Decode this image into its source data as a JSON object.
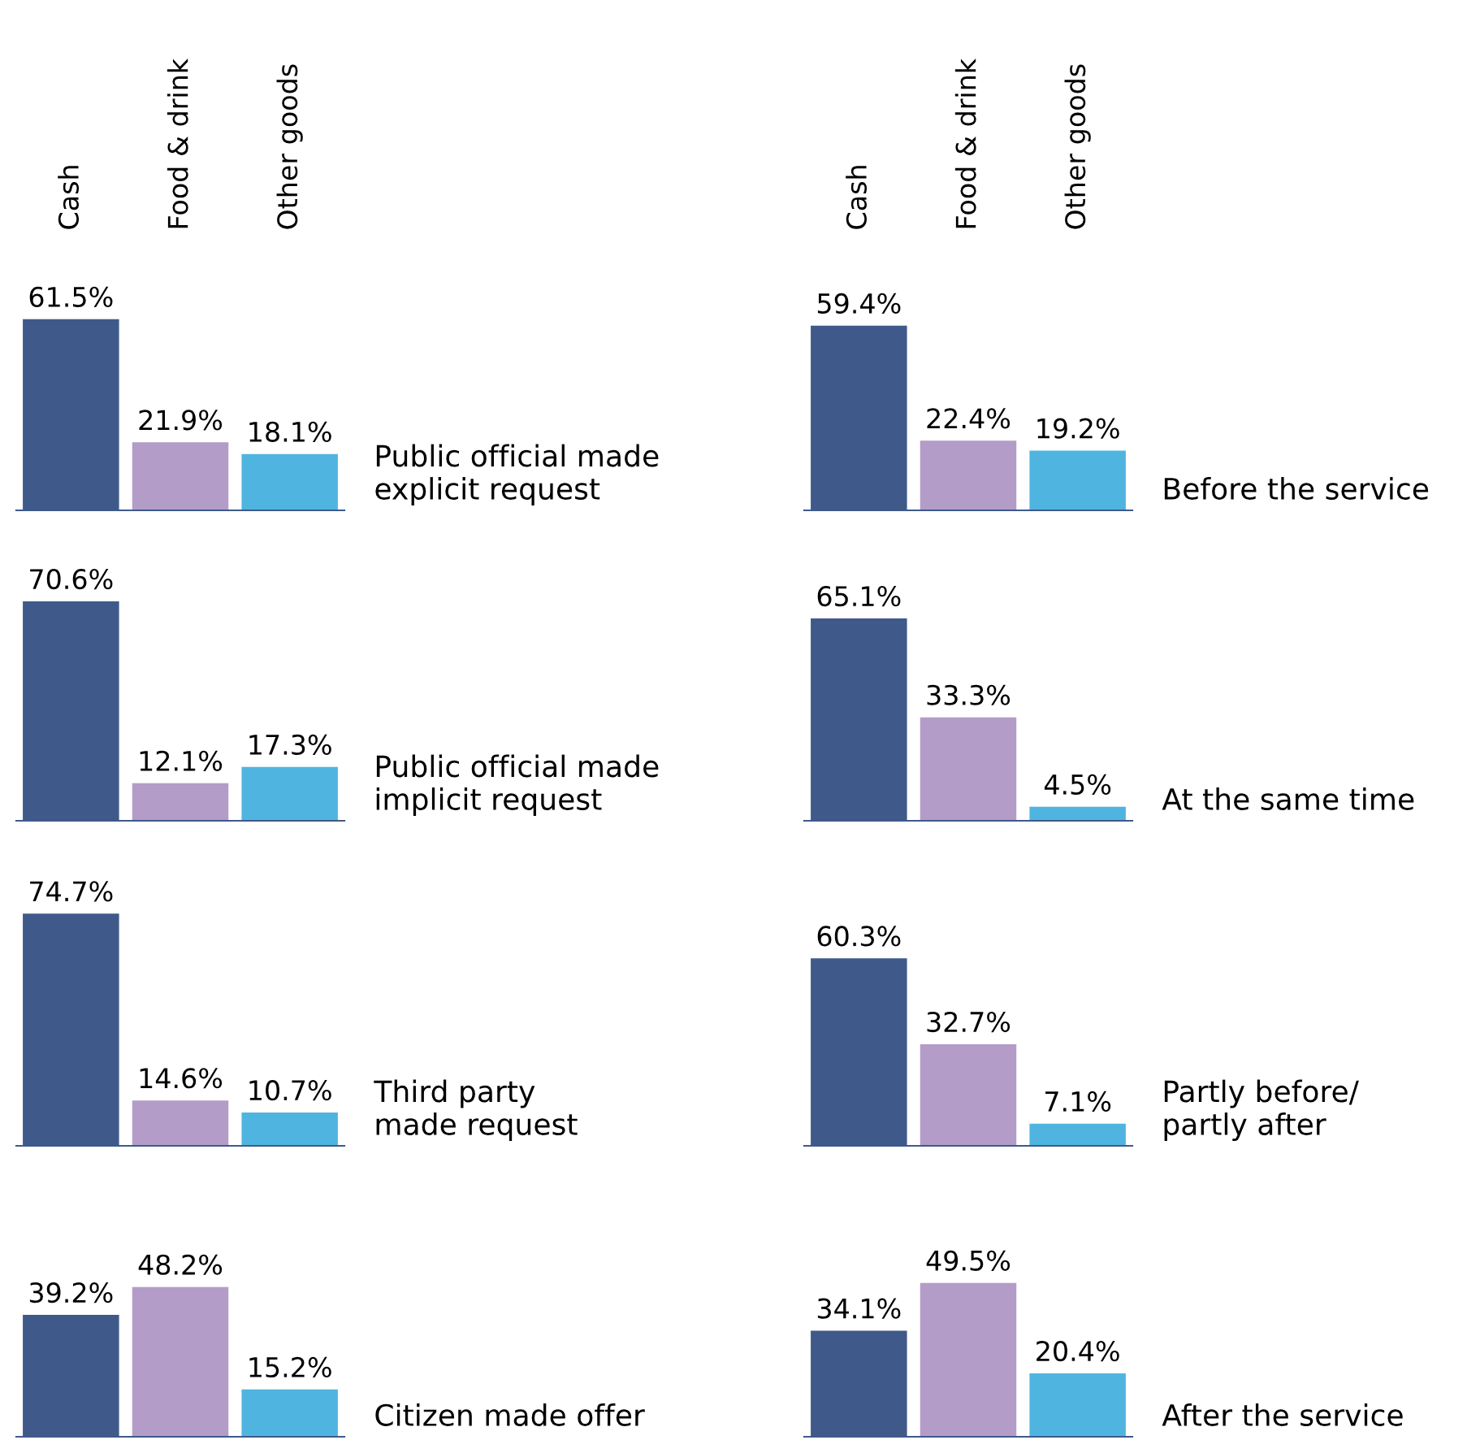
{
  "chart_data": [
    {
      "type": "bar",
      "categories": [
        "Cash",
        "Food & drink",
        "Other goods"
      ],
      "values": [
        61.5,
        21.9,
        18.1
      ],
      "value_labels": [
        "61.5%",
        "21.9%",
        "18.1%"
      ],
      "colors": [
        "#3f5a8a",
        "#b39cc8",
        "#4fb5e0"
      ],
      "annotations": [
        "Public official made\nexplicit request"
      ]
    },
    {
      "type": "bar",
      "categories": [
        "Cash",
        "Food & drink",
        "Other goods"
      ],
      "values": [
        59.4,
        22.4,
        19.2
      ],
      "value_labels": [
        "59.4%",
        "22.4%",
        "19.2%"
      ],
      "colors": [
        "#3f5a8a",
        "#b39cc8",
        "#4fb5e0"
      ],
      "annotations": [
        "Before the service"
      ]
    },
    {
      "type": "bar",
      "categories": [
        null,
        null,
        null
      ],
      "values": [
        70.6,
        12.1,
        17.3
      ],
      "value_labels": [
        "70.6%",
        "12.1%",
        "17.3%"
      ],
      "colors": [
        "#3f5a8a",
        "#b39cc8",
        "#4fb5e0"
      ],
      "annotations": [
        "Public official made\nimplicit request"
      ]
    },
    {
      "type": "bar",
      "categories": [
        null,
        null,
        null
      ],
      "values": [
        65.1,
        33.3,
        4.5
      ],
      "value_labels": [
        "65.1%",
        "33.3%",
        "4.5%"
      ],
      "colors": [
        "#3f5a8a",
        "#b39cc8",
        "#4fb5e0"
      ],
      "annotations": [
        "At the same time"
      ]
    },
    {
      "type": "bar",
      "categories": [
        null,
        null,
        null
      ],
      "values": [
        74.7,
        14.6,
        10.7
      ],
      "value_labels": [
        "74.7%",
        "14.6%",
        "10.7%"
      ],
      "colors": [
        "#3f5a8a",
        "#b39cc8",
        "#4fb5e0"
      ],
      "annotations": [
        "Third party\nmade request"
      ]
    },
    {
      "type": "bar",
      "categories": [
        null,
        null,
        null
      ],
      "values": [
        60.3,
        32.7,
        7.1
      ],
      "value_labels": [
        "60.3%",
        "32.7%",
        "7.1%"
      ],
      "colors": [
        "#3f5a8a",
        "#b39cc8",
        "#4fb5e0"
      ],
      "annotations": [
        "Partly before/\npartly after"
      ]
    },
    {
      "type": "bar",
      "categories": [
        null,
        null,
        null
      ],
      "values": [
        39.2,
        48.2,
        15.2
      ],
      "value_labels": [
        "39.2%",
        "48.2%",
        "15.2%"
      ],
      "colors": [
        "#3f5a8a",
        "#b39cc8",
        "#4fb5e0"
      ],
      "annotations": [
        "Citizen made offer"
      ]
    },
    {
      "type": "bar",
      "categories": [
        null,
        null,
        null
      ],
      "values": [
        34.1,
        49.5,
        20.4
      ],
      "value_labels": [
        "34.1%",
        "49.5%",
        "20.4%"
      ],
      "colors": [
        "#3f5a8a",
        "#b39cc8",
        "#4fb5e0"
      ],
      "annotations": [
        "After the service"
      ]
    }
  ]
}
